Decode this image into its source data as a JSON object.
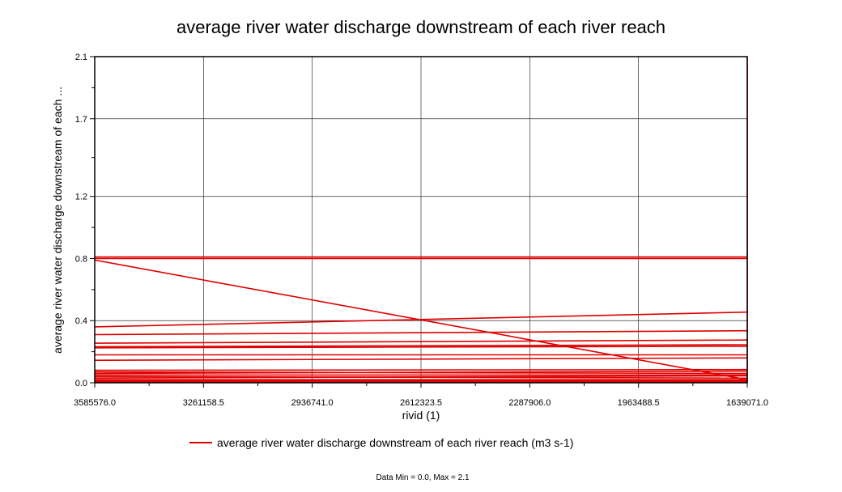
{
  "chart_data": {
    "type": "line",
    "title": "average river water discharge downstream of each river reach",
    "xlabel": "rivid (1)",
    "ylabel": "average river water discharge downstream of each ...",
    "x_ticks": [
      "3585576.0",
      "3261158.5",
      "2936741.0",
      "2612323.5",
      "2287906.0",
      "1963488.5",
      "1639071.0"
    ],
    "x_reversed": true,
    "xlim": [
      3585576.0,
      1639071.0
    ],
    "y_ticks": [
      "0.0",
      "0.4",
      "0.8",
      "1.2",
      "1.7",
      "2.1"
    ],
    "ylim": [
      0,
      2.1
    ],
    "grid": true,
    "legend_position": "bottom-center",
    "series": [
      {
        "name": "average river water discharge downstream of each river reach (m3 s-1)",
        "color": "#e00000",
        "segments": [
          [
            [
              3585576.0,
              0.81
            ],
            [
              1639071.0,
              0.81
            ]
          ],
          [
            [
              3585576.0,
              0.8
            ],
            [
              1639071.0,
              0.8
            ]
          ],
          [
            [
              3585576.0,
              0.79
            ],
            [
              1639071.0,
              0.02
            ]
          ],
          [
            [
              3585576.0,
              0.36
            ],
            [
              1639071.0,
              0.455
            ]
          ],
          [
            [
              3585576.0,
              0.31
            ],
            [
              1639071.0,
              0.335
            ]
          ],
          [
            [
              3585576.0,
              0.255
            ],
            [
              1639071.0,
              0.275
            ]
          ],
          [
            [
              3585576.0,
              0.232
            ],
            [
              1639071.0,
              0.245
            ]
          ],
          [
            [
              3585576.0,
              0.225
            ],
            [
              1639071.0,
              0.235
            ]
          ],
          [
            [
              3585576.0,
              0.18
            ],
            [
              1639071.0,
              0.18
            ]
          ],
          [
            [
              3585576.0,
              0.145
            ],
            [
              1639071.0,
              0.16
            ]
          ],
          [
            [
              3585576.0,
              0.08
            ],
            [
              1639071.0,
              0.085
            ]
          ],
          [
            [
              3585576.0,
              0.07
            ],
            [
              1639071.0,
              0.06
            ]
          ],
          [
            [
              3585576.0,
              0.06
            ],
            [
              1639071.0,
              0.075
            ]
          ],
          [
            [
              3585576.0,
              0.05
            ],
            [
              1639071.0,
              0.05
            ]
          ],
          [
            [
              3585576.0,
              0.04
            ],
            [
              1639071.0,
              0.03
            ]
          ],
          [
            [
              3585576.0,
              0.03
            ],
            [
              1639071.0,
              0.045
            ]
          ],
          [
            [
              3585576.0,
              0.02
            ],
            [
              1639071.0,
              0.02
            ]
          ],
          [
            [
              3585576.0,
              0.012
            ],
            [
              1639071.0,
              0.012
            ]
          ],
          [
            [
              3585576.0,
              0.005
            ],
            [
              1639071.0,
              0.005
            ]
          ],
          [
            [
              1639071.0,
              0.0
            ],
            [
              1639071.0,
              2.1
            ]
          ]
        ]
      }
    ],
    "footer": "Data Min = 0.0, Max = 2.1"
  }
}
